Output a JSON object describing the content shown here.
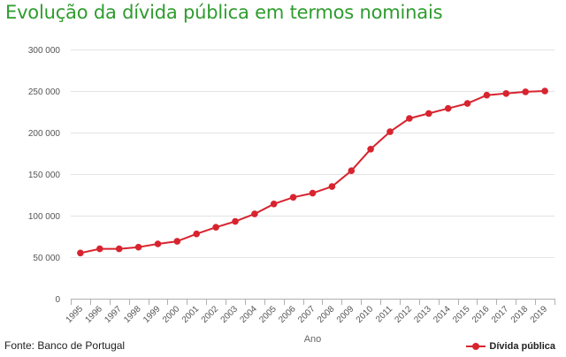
{
  "chart_data": {
    "type": "line",
    "title": "Evolução da dívida pública em termos nominais",
    "source": "Fonte: Banco de Portugal",
    "xlabel": "Ano",
    "ylabel": "",
    "ylim": [
      0,
      300000
    ],
    "y_ticks": [
      0,
      50000,
      100000,
      150000,
      200000,
      250000,
      300000
    ],
    "y_tick_labels": [
      "0",
      "50 000",
      "100 000",
      "150 000",
      "200 000",
      "250 000",
      "300 000"
    ],
    "categories": [
      "1995",
      "1996",
      "1997",
      "1998",
      "1999",
      "2000",
      "2001",
      "2002",
      "2003",
      "2004",
      "2005",
      "2006",
      "2007",
      "2008",
      "2009",
      "2010",
      "2011",
      "2012",
      "2013",
      "2014",
      "2015",
      "2016",
      "2017",
      "2018",
      "2019"
    ],
    "series": [
      {
        "name": "Dívida pública",
        "values": [
          55000,
          60000,
          60000,
          62000,
          66000,
          69000,
          78000,
          86000,
          93000,
          102000,
          114000,
          122000,
          127000,
          135000,
          154000,
          180000,
          201000,
          217000,
          223000,
          229000,
          235000,
          245000,
          247000,
          249000,
          250000
        ]
      }
    ],
    "grid": true,
    "legend_position": "bottom-right"
  },
  "colors": {
    "title": "#2e9c2e",
    "series": "#d7242f",
    "grid": "#e3e3e3",
    "axis": "#b0b0b0"
  }
}
